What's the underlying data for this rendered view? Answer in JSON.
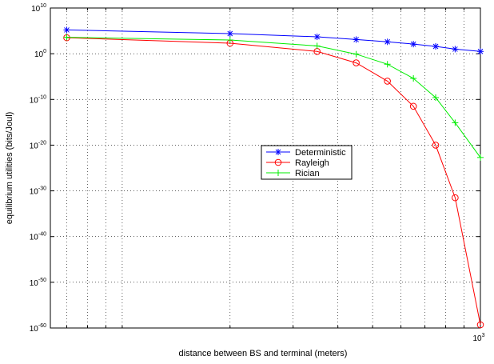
{
  "chart_data": {
    "type": "line",
    "title": "",
    "xlabel": "distance between BS and terminal (meters)",
    "ylabel": "equilibrium utilities (bits/Joul)",
    "xscale": "log",
    "yscale": "log",
    "xlim": [
      63,
      1000
    ],
    "ylim": [
      1e-60,
      10000000000.0
    ],
    "grid": true,
    "grid_style": "dotted",
    "legend_position": "center-right",
    "x_tick_labels": [
      {
        "value": 1000,
        "base": "10",
        "exp": "3"
      }
    ],
    "y_tick_labels": [
      {
        "value": 10000000000.0,
        "base": "10",
        "exp": "10"
      },
      {
        "value": 1.0,
        "base": "10",
        "exp": "0"
      },
      {
        "value": 1e-10,
        "base": "10",
        "exp": "-10"
      },
      {
        "value": 1e-20,
        "base": "10",
        "exp": "-20"
      },
      {
        "value": 1e-30,
        "base": "10",
        "exp": "-30"
      },
      {
        "value": 1e-40,
        "base": "10",
        "exp": "-40"
      },
      {
        "value": 1e-50,
        "base": "10",
        "exp": "-50"
      },
      {
        "value": 1e-60,
        "base": "10",
        "exp": "-60"
      }
    ],
    "x_minor_ticks": [
      70,
      80,
      90,
      100,
      200,
      300,
      400,
      500,
      600,
      700,
      800,
      900
    ],
    "series": [
      {
        "name": "Deterministic",
        "color": "#0000ff",
        "marker": "asterisk",
        "x": [
          70,
          200,
          350,
          450,
          550,
          650,
          750,
          850,
          1000
        ],
        "log10_y": [
          5.2,
          4.4,
          3.7,
          3.1,
          2.6,
          2.1,
          1.6,
          1.0,
          0.5
        ]
      },
      {
        "name": "Rayleigh",
        "color": "#ff0000",
        "marker": "circle",
        "x": [
          70,
          200,
          350,
          450,
          550,
          650,
          750,
          850,
          1000
        ],
        "log10_y": [
          3.5,
          2.3,
          0.5,
          -2.0,
          -6.0,
          -11.5,
          -20.0,
          -31.5,
          -59.3
        ]
      },
      {
        "name": "Rician",
        "color": "#00ee00",
        "marker": "plus",
        "x": [
          70,
          200,
          350,
          450,
          550,
          650,
          750,
          850,
          1000
        ],
        "log10_y": [
          3.6,
          3.0,
          1.7,
          -0.1,
          -2.3,
          -5.4,
          -9.6,
          -15.1,
          -22.7
        ]
      }
    ]
  }
}
